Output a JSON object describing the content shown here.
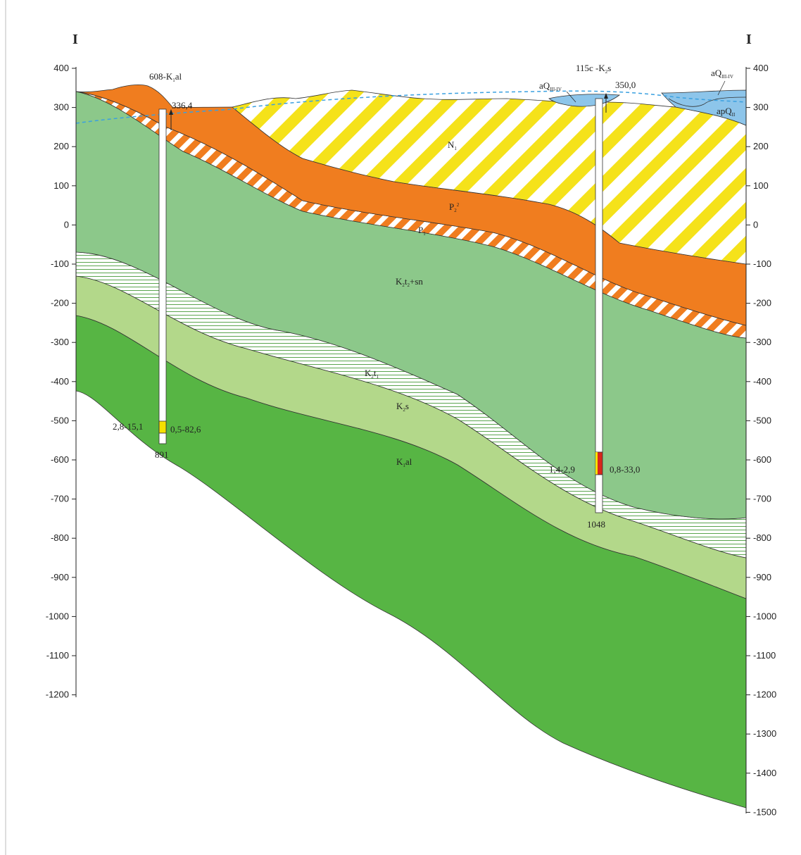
{
  "section_marks": {
    "left": "I",
    "right": "I"
  },
  "left_axis_ticks": [
    "400",
    "300",
    "200",
    "100",
    "0",
    "-100",
    "-200",
    "-300",
    "-400",
    "-500",
    "-600",
    "-700",
    "-800",
    "-900",
    "-1000",
    "-1100",
    "-1200"
  ],
  "right_axis_ticks": [
    "400",
    "300",
    "200",
    "100",
    "0",
    "-100",
    "-200",
    "-300",
    "-400",
    "-500",
    "-600",
    "-700",
    "-800",
    "-900",
    "-1000",
    "-1100",
    "-1200",
    "-1300",
    "-1400",
    "-1500"
  ],
  "well_1": {
    "name": "608-K",
    "name_sub": "1",
    "name_suffix": "al",
    "collar": "336,4",
    "left_value": "2,8-15,1",
    "right_value": "0,5-82,6",
    "depth": "891"
  },
  "well_2": {
    "name": "115c -K",
    "name_sub": "2",
    "name_suffix": "s",
    "collar": "350,0",
    "left_value": "1,4-2,9",
    "right_value": "0,8-33,0",
    "depth": "1048"
  },
  "layers": {
    "n1": {
      "main": "N",
      "sub": "1"
    },
    "p2": {
      "main": "P",
      "sub": "2",
      "sup": "2"
    },
    "p1": {
      "main": "P",
      "sub": "1"
    },
    "k2t2sn": {
      "main": "K",
      "sub1": "2",
      "mid": "t",
      "sub2": "2",
      "suffix": "+sn"
    },
    "k2t1": {
      "main": "K",
      "sub1": "2",
      "mid": "t",
      "sub2": "1"
    },
    "k2s": {
      "main": "K",
      "sub": "2",
      "suffix": "s"
    },
    "k1al": {
      "main": "K",
      "sub": "1",
      "suffix": "al"
    },
    "aq_a": {
      "main": "aQ",
      "sub": "III-IV"
    },
    "aq_b": {
      "main": "aQ",
      "sub": "III-IV"
    },
    "apq": {
      "main": "apQ",
      "sub": "II"
    }
  },
  "colors": {
    "n1_stripe": "#f5e21a",
    "p2": "#f07d1f",
    "p1_stripe": "#f07d1f",
    "k2t2sn": "#8cc88a",
    "k2t1_line": "#5ba54f",
    "k2s": "#b3d88a",
    "k1al": "#57b544",
    "alluvium": "#8dc5ea",
    "water_table": "#3aa0e0",
    "well_yellow": "#f5e000",
    "well_red": "#d8261c"
  }
}
